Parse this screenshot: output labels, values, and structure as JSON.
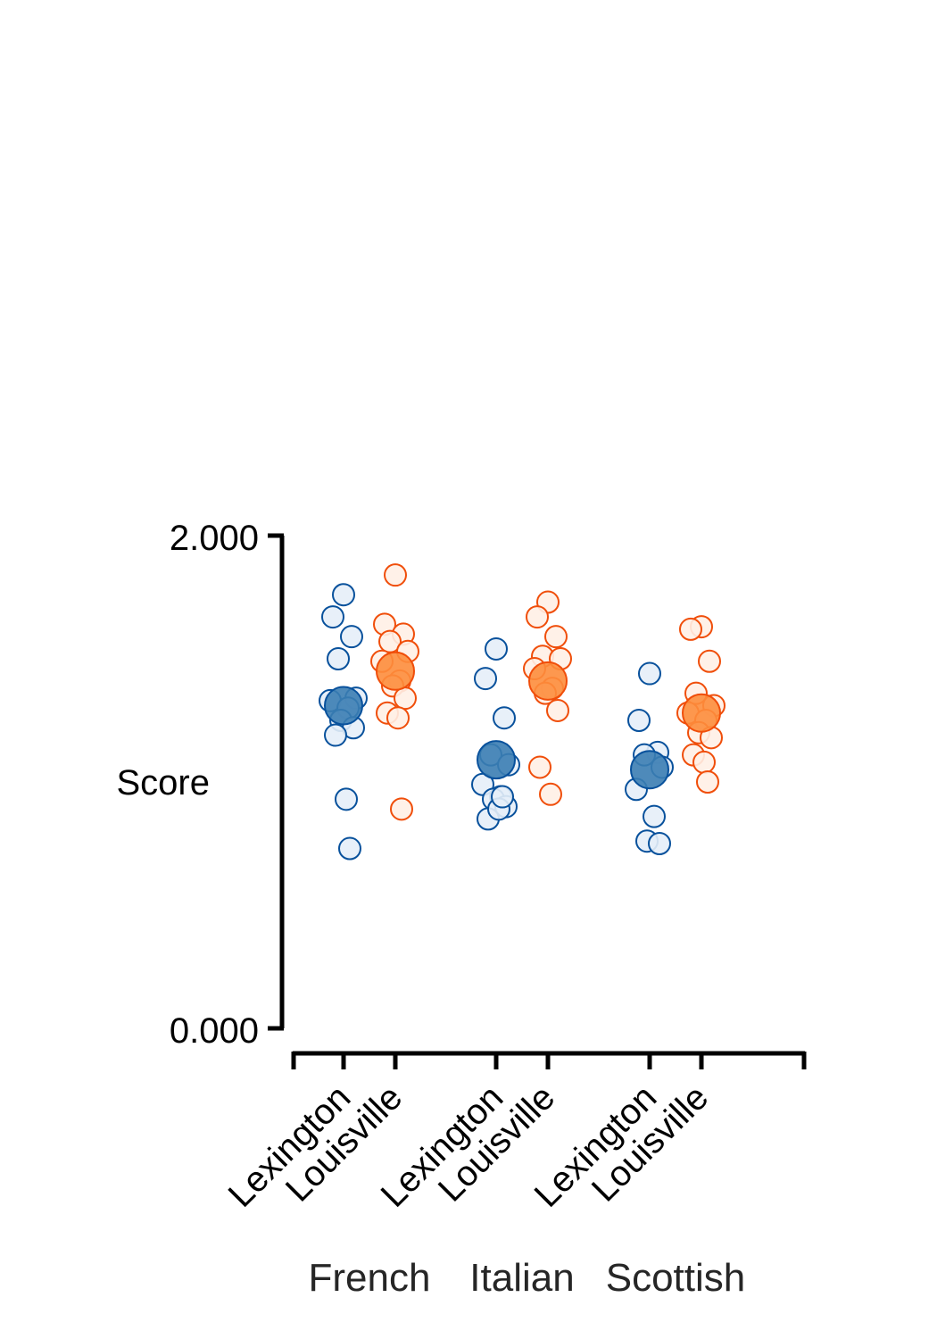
{
  "chart_data": {
    "type": "scatter",
    "ylabel": "Score",
    "ylim": [
      0,
      2
    ],
    "yticks": [
      "0.000",
      "2.000"
    ],
    "groups": [
      "French",
      "Italian",
      "Scottish"
    ],
    "categories": [
      "Lexington",
      "Louisville"
    ],
    "colors": {
      "Lexington": {
        "stroke": "#08519c",
        "fill": "#e6eef8",
        "mean_fill": "#3b7db3"
      },
      "Louisville": {
        "stroke": "#f04e0a",
        "fill": "#fff0e6",
        "mean_fill": "#fd8d3c"
      }
    },
    "series": [
      {
        "group": "French",
        "category": "Lexington",
        "mean": 1.31,
        "values": [
          1.76,
          1.67,
          1.59,
          1.5,
          1.34,
          1.33,
          1.3,
          1.25,
          1.22,
          1.19,
          0.93,
          0.73
        ]
      },
      {
        "group": "French",
        "category": "Louisville",
        "mean": 1.45,
        "values": [
          1.84,
          1.64,
          1.6,
          1.57,
          1.53,
          1.49,
          1.41,
          1.39,
          1.34,
          1.28,
          1.26,
          0.89
        ]
      },
      {
        "group": "Italian",
        "category": "Lexington",
        "mean": 1.09,
        "values": [
          1.54,
          1.42,
          1.26,
          1.11,
          1.07,
          0.99,
          0.94,
          0.93,
          0.9,
          0.85,
          0.89,
          0.94
        ]
      },
      {
        "group": "Italian",
        "category": "Louisville",
        "mean": 1.41,
        "values": [
          1.73,
          1.67,
          1.59,
          1.51,
          1.5,
          1.46,
          1.38,
          1.36,
          1.29,
          1.06,
          0.95
        ]
      },
      {
        "group": "Scottish",
        "category": "Lexington",
        "mean": 1.05,
        "values": [
          1.44,
          1.25,
          1.12,
          1.11,
          1.06,
          0.97,
          0.86,
          0.76,
          0.75
        ]
      },
      {
        "group": "Scottish",
        "category": "Louisville",
        "mean": 1.28,
        "values": [
          1.63,
          1.62,
          1.49,
          1.36,
          1.31,
          1.28,
          1.25,
          1.2,
          1.18,
          1.11,
          1.08,
          1.0
        ]
      }
    ]
  }
}
